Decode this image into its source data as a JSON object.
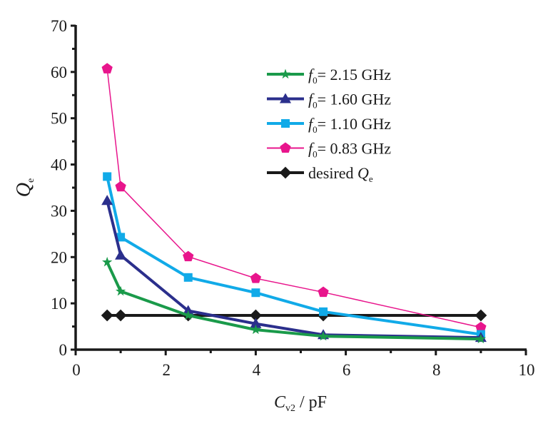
{
  "chart_data": {
    "type": "line",
    "title": "",
    "xlabel": {
      "main": "C",
      "sub": "v2",
      "rest": " / pF"
    },
    "ylabel": {
      "main": "Q",
      "sub": "e"
    },
    "xlim": [
      0,
      10
    ],
    "ylim": [
      0,
      70
    ],
    "xticks": [
      0,
      2,
      4,
      6,
      8,
      10
    ],
    "xticks_minor": [
      1,
      3,
      5,
      7,
      9
    ],
    "yticks": [
      0,
      10,
      20,
      30,
      40,
      50,
      60,
      70
    ],
    "yticks_minor": [
      5,
      15,
      25,
      35,
      45,
      55,
      65
    ],
    "grid": false,
    "legend_position": "upper-right",
    "series": [
      {
        "name": "f0= 2.15 GHz",
        "label_main": "f",
        "label_sub": "0",
        "label_rest": "= 2.15 GHz",
        "color": "#1a9a4a",
        "marker": "star",
        "line_width": "thick",
        "x": [
          0.7,
          1.0,
          2.5,
          4.0,
          5.5,
          9.0
        ],
        "y": [
          18.9,
          12.6,
          7.4,
          4.3,
          2.9,
          2.3
        ]
      },
      {
        "name": "f0= 1.60 GHz",
        "label_main": "f",
        "label_sub": "0",
        "label_rest": "= 1.60 GHz",
        "color": "#2b2f8c",
        "marker": "triangle",
        "line_width": "thick",
        "x": [
          0.7,
          1.0,
          2.5,
          4.0,
          5.5,
          9.0
        ],
        "y": [
          32.2,
          20.4,
          8.4,
          5.6,
          3.2,
          2.6
        ]
      },
      {
        "name": "f0= 1.10 GHz",
        "label_main": "f",
        "label_sub": "0",
        "label_rest": "= 1.10 GHz",
        "color": "#11aae8",
        "marker": "square",
        "line_width": "thick",
        "x": [
          0.7,
          1.0,
          2.5,
          4.0,
          5.5,
          9.0
        ],
        "y": [
          37.4,
          24.3,
          15.6,
          12.3,
          8.2,
          3.3
        ]
      },
      {
        "name": "f0= 0.83 GHz",
        "label_main": "f",
        "label_sub": "0",
        "label_rest": "= 0.83 GHz",
        "color": "#e8158c",
        "marker": "pentagon",
        "line_width": "thin",
        "x": [
          0.7,
          1.0,
          2.5,
          4.0,
          5.5,
          9.0
        ],
        "y": [
          60.7,
          35.2,
          20.1,
          15.4,
          12.4,
          4.8
        ]
      },
      {
        "name": "desired Qe",
        "label_main": "desired ",
        "label_sub": "e",
        "label_rest": "",
        "label_italic": "Q",
        "color": "#1a1a1a",
        "marker": "diamond",
        "line_width": "thick",
        "x": [
          0.7,
          1.0,
          2.5,
          4.0,
          5.5,
          9.0
        ],
        "y": [
          7.4,
          7.4,
          7.4,
          7.4,
          7.4,
          7.4
        ]
      }
    ]
  }
}
